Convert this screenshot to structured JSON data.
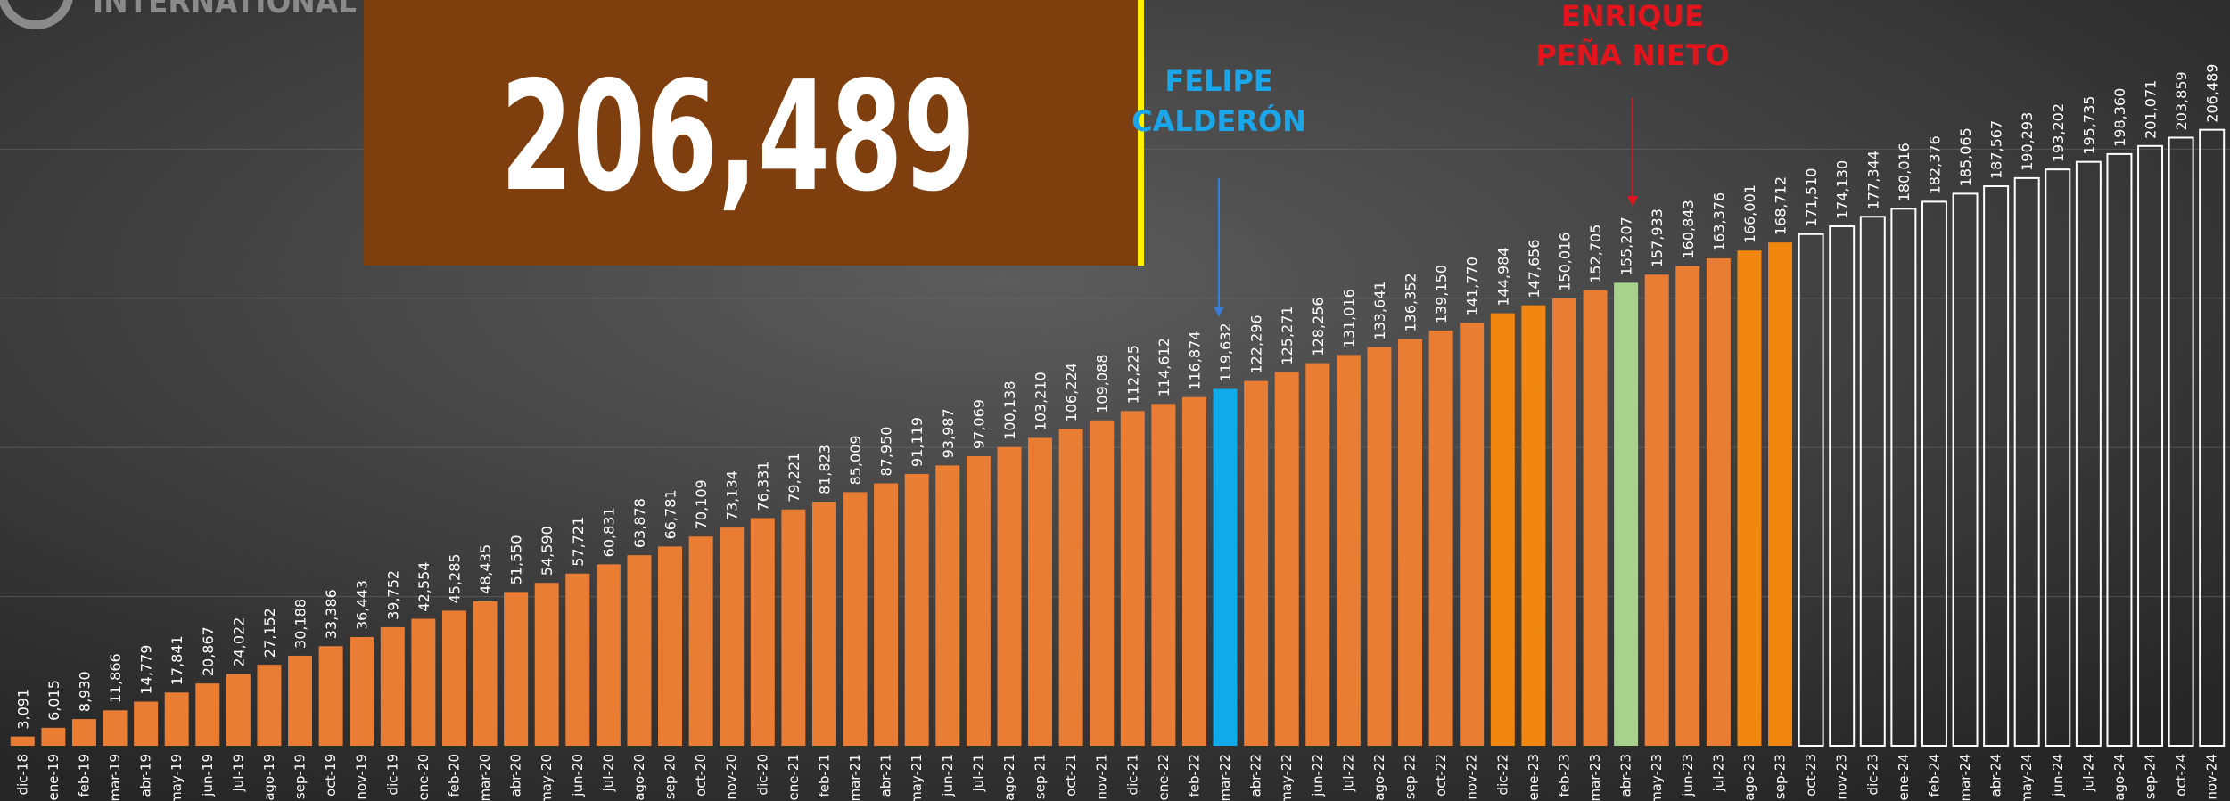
{
  "chart_data": {
    "type": "bar",
    "logo_text": "INTERNATIONAL",
    "headline": "206,489",
    "annotations": [
      {
        "text": [
          "FELIPE",
          "CALDERÓN"
        ],
        "color": "#1ba6ea"
      },
      {
        "text": [
          "ENRIQUE",
          "PEÑA NIETO"
        ],
        "color": "#e3141c"
      }
    ],
    "categories": [
      "dic-18",
      "ene-19",
      "feb-19",
      "mar-19",
      "abr-19",
      "may-19",
      "jun-19",
      "jul-19",
      "ago-19",
      "sep-19",
      "oct-19",
      "nov-19",
      "dic-19",
      "ene-20",
      "feb-20",
      "mar-20",
      "abr-20",
      "may-20",
      "jun-20",
      "jul-20",
      "ago-20",
      "sep-20",
      "oct-20",
      "nov-20",
      "dic-20",
      "ene-21",
      "feb-21",
      "mar-21",
      "abr-21",
      "may-21",
      "jun-21",
      "jul-21",
      "ago-21",
      "sep-21",
      "oct-21",
      "nov-21",
      "dic-21",
      "ene-22",
      "feb-22",
      "mar-22",
      "abr-22",
      "may-22",
      "jun-22",
      "jul-22",
      "ago-22",
      "sep-22",
      "oct-22",
      "nov-22",
      "dic-22",
      "ene-23",
      "feb-23",
      "mar-23",
      "abr-23",
      "may-23",
      "jun-23",
      "jul-23",
      "ago-23",
      "sep-23",
      "oct-23",
      "nov-23",
      "dic-23",
      "ene-24",
      "feb-24",
      "mar-24",
      "abr-24",
      "may-24",
      "jun-24",
      "jul-24",
      "ago-24",
      "sep-24",
      "oct-24",
      "nov-24"
    ],
    "values": [
      3091,
      6015,
      8930,
      11866,
      14779,
      17841,
      20867,
      24022,
      27152,
      30188,
      33386,
      36443,
      39752,
      42554,
      45285,
      48435,
      51550,
      54590,
      57721,
      60831,
      63878,
      66781,
      70109,
      73134,
      76331,
      79221,
      81823,
      85009,
      87950,
      91119,
      93987,
      97069,
      100138,
      103210,
      106224,
      109088,
      112225,
      114612,
      116874,
      119632,
      122296,
      125271,
      128256,
      131016,
      133641,
      136352,
      139150,
      141770,
      144984,
      147656,
      150016,
      152705,
      155207,
      157933,
      160843,
      163376,
      166001,
      168712,
      171510,
      174130,
      177344,
      180016,
      182376,
      185065,
      187567,
      190293,
      193202,
      195735,
      198360,
      201071,
      203859,
      206489
    ],
    "value_labels": [
      "3,091",
      "6,015",
      "8,930",
      "11,866",
      "14,779",
      "17,841",
      "20,867",
      "24,022",
      "27,152",
      "30,188",
      "33,386",
      "36,443",
      "39,752",
      "42,554",
      "45,285",
      "48,435",
      "51,550",
      "54,590",
      "57,721",
      "60,831",
      "63,878",
      "66,781",
      "70,109",
      "73,134",
      "76,331",
      "79,221",
      "81,823",
      "85,009",
      "87,950",
      "91,119",
      "93,987",
      "97,069",
      "100,138",
      "103,210",
      "106,224",
      "109,088",
      "112,225",
      "114,612",
      "116,874",
      "119,632",
      "122,296",
      "125,271",
      "128,256",
      "131,016",
      "133,641",
      "136,352",
      "139,150",
      "141,770",
      "144,984",
      "147,656",
      "150,016",
      "152,705",
      "155,207",
      "157,933",
      "160,843",
      "163,376",
      "166,001",
      "168,712",
      "171,510",
      "174,130",
      "177,344",
      "180,016",
      "182,376",
      "185,065",
      "187,567",
      "190,293",
      "193,202",
      "195,735",
      "198,360",
      "201,071",
      "203,859",
      "206,489"
    ],
    "colors": [
      "#ea7d34",
      "#ea7d34",
      "#ea7d34",
      "#ea7d34",
      "#ea7d34",
      "#ea7d34",
      "#ea7d34",
      "#ea7d34",
      "#ea7d34",
      "#ea7d34",
      "#ea7d34",
      "#ea7d34",
      "#ea7d34",
      "#ea7d34",
      "#ea7d34",
      "#ea7d34",
      "#ea7d34",
      "#ea7d34",
      "#ea7d34",
      "#ea7d34",
      "#ea7d34",
      "#ea7d34",
      "#ea7d34",
      "#ea7d34",
      "#ea7d34",
      "#ea7d34",
      "#ea7d34",
      "#ea7d34",
      "#ea7d34",
      "#ea7d34",
      "#ea7d34",
      "#ea7d34",
      "#ea7d34",
      "#ea7d34",
      "#ea7d34",
      "#ea7d34",
      "#ea7d34",
      "#ea7d34",
      "#ea7d34",
      "#10a9e9",
      "#ea7d34",
      "#ea7d34",
      "#ea7d34",
      "#ea7d34",
      "#ea7d34",
      "#ea7d34",
      "#ea7d34",
      "#ea7d34",
      "#f2870f",
      "#f2870f",
      "#ea7d34",
      "#ea7d34",
      "#a9d18e",
      "#ea7d34",
      "#ea7d34",
      "#ea7d34",
      "#f2870f",
      "#f2870f",
      "none",
      "none",
      "none",
      "none",
      "none",
      "none",
      "none",
      "none",
      "none",
      "none",
      "none",
      "none",
      "none",
      "none"
    ],
    "ylim": [
      0,
      250000
    ],
    "yticks": [
      50000,
      100000,
      150000,
      200000
    ],
    "grid": true
  }
}
